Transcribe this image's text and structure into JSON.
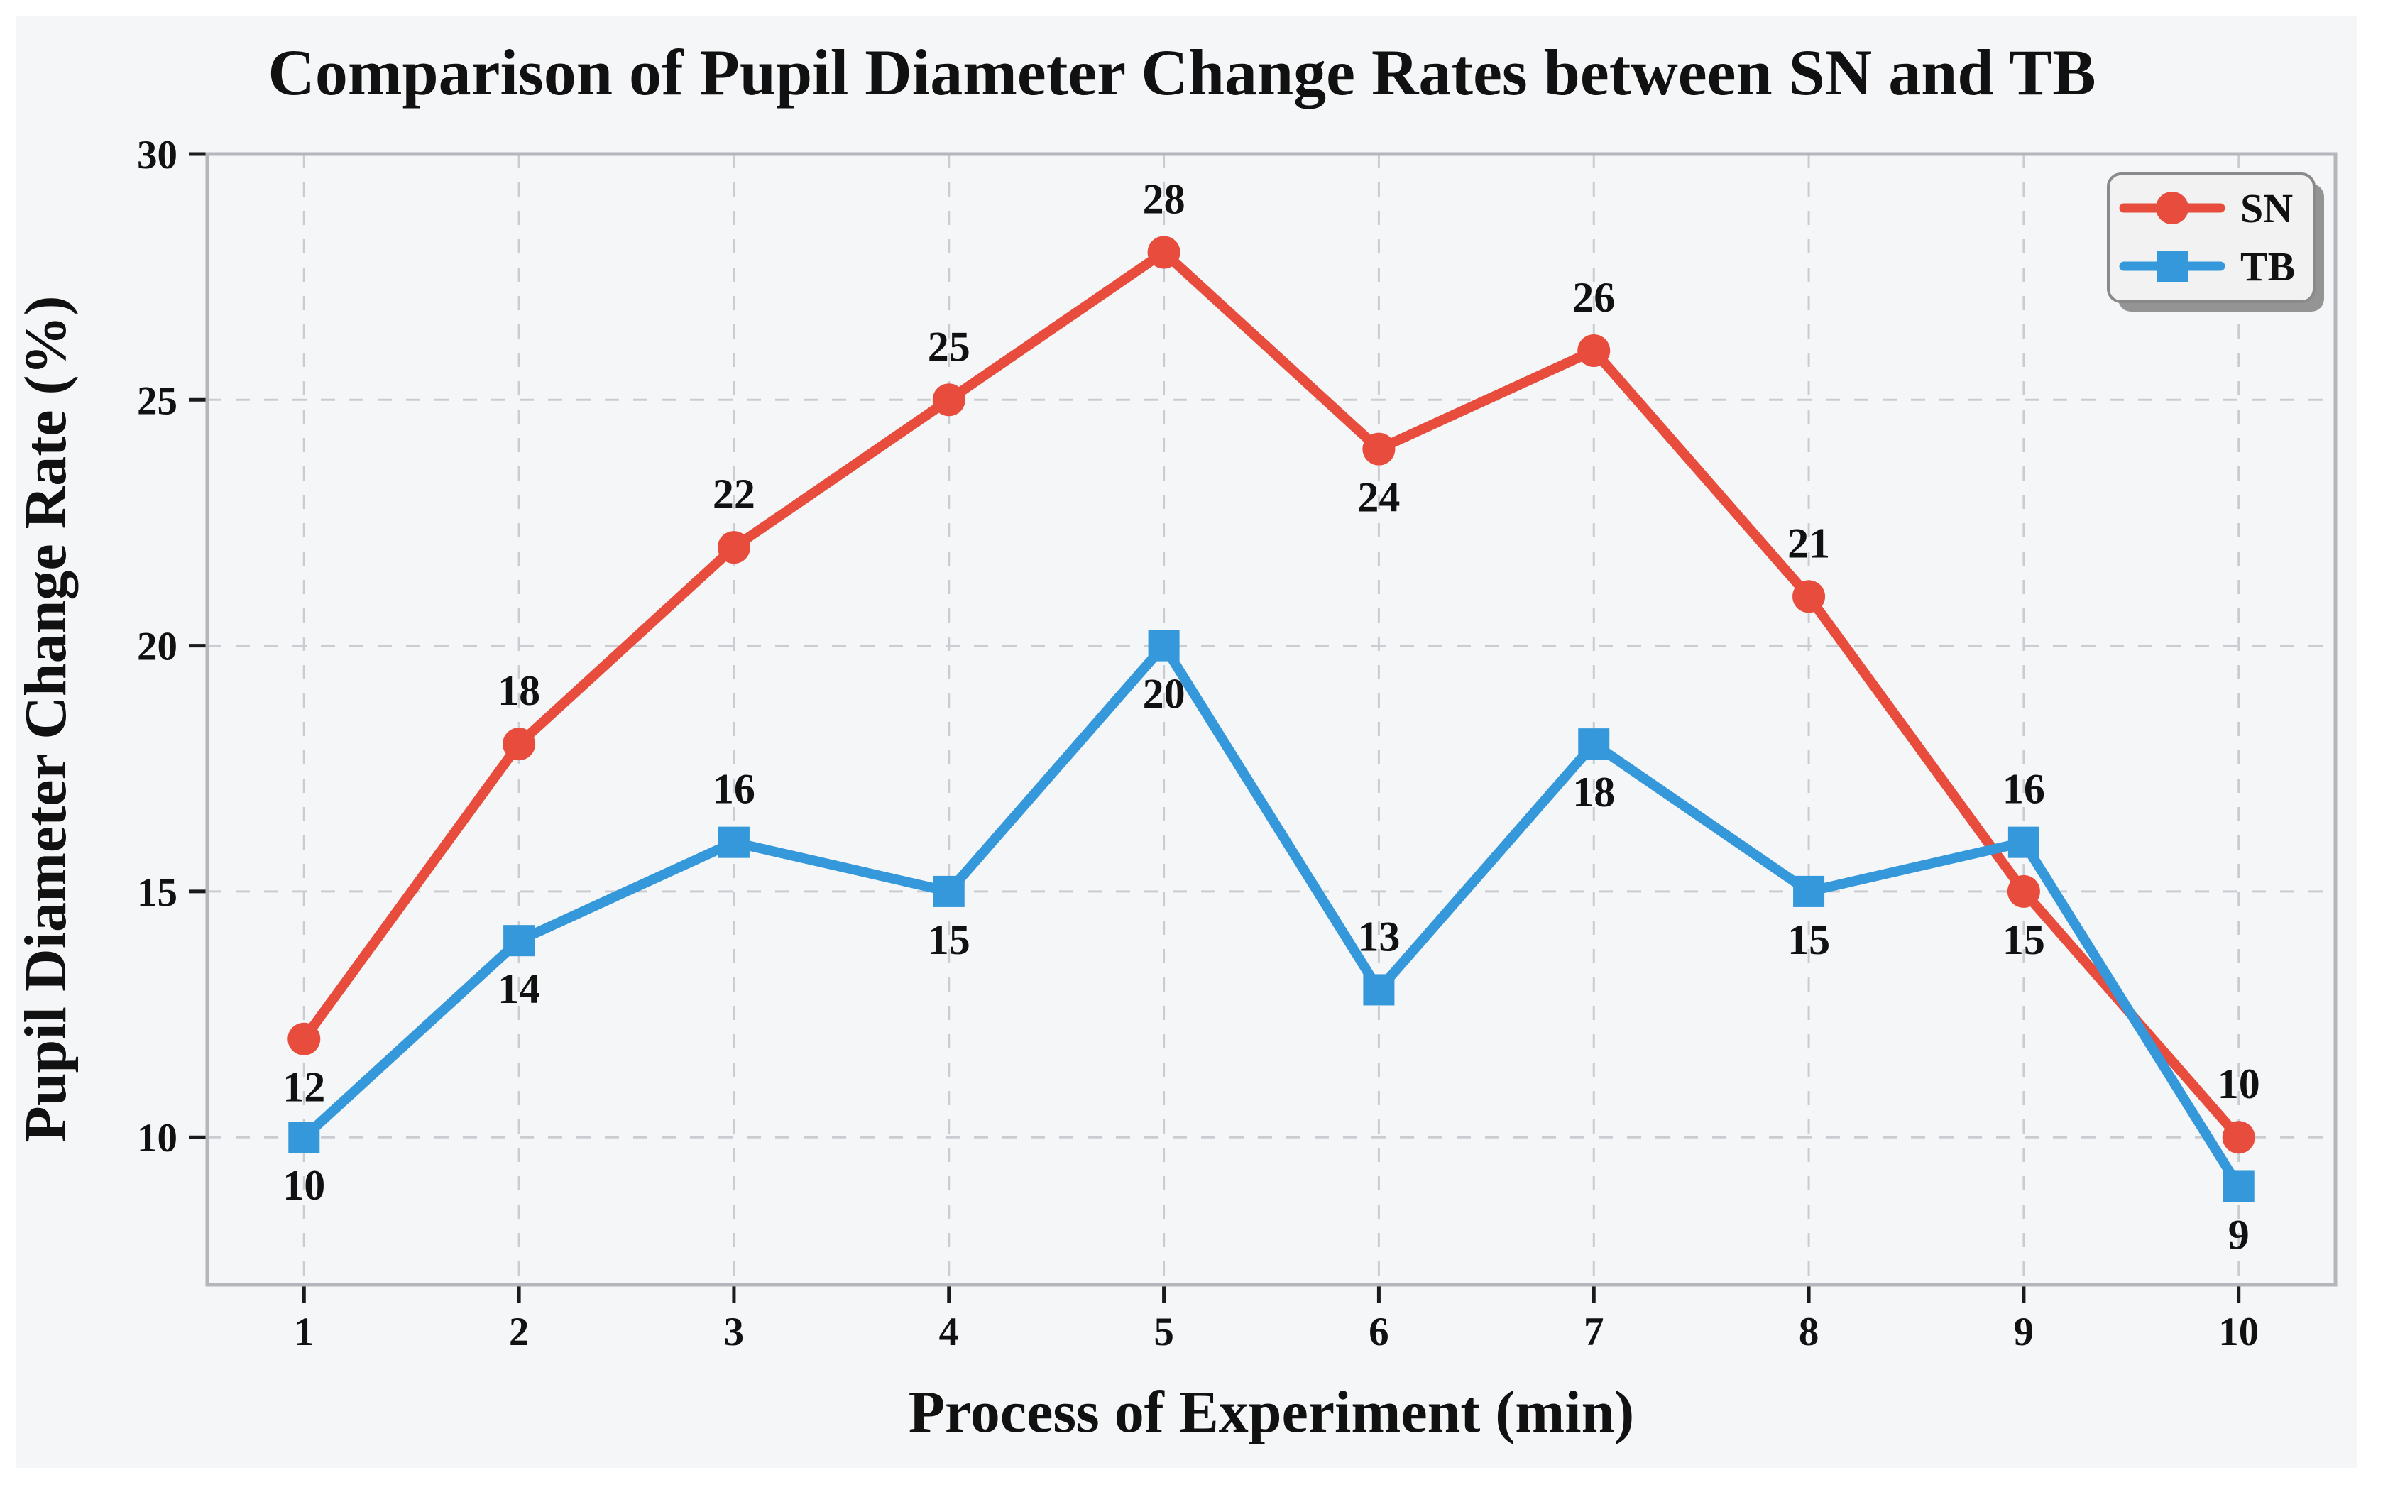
{
  "figure": {
    "background": "#f5f6f8",
    "page_background": "#ffffff"
  },
  "chart_data": {
    "type": "line",
    "title": "Comparison of Pupil Diameter Change Rates between SN and TB",
    "xlabel": "Process of Experiment (min)",
    "ylabel": "Pupil Diameter Change Rate (%)",
    "x": [
      1,
      2,
      3,
      4,
      5,
      6,
      7,
      8,
      9,
      10
    ],
    "xticks": [
      "1",
      "2",
      "3",
      "4",
      "5",
      "6",
      "7",
      "8",
      "9",
      "10"
    ],
    "yticks": [
      "10",
      "15",
      "20",
      "25",
      "30"
    ],
    "ytick_values": [
      10,
      15,
      20,
      25,
      30
    ],
    "xlim": [
      0.55,
      10.45
    ],
    "ylim": [
      7,
      30
    ],
    "grid": {
      "show": true,
      "style": "dashed",
      "axes": "both"
    },
    "legend": {
      "position": "upper-right"
    },
    "series": [
      {
        "name": "SN",
        "color": "#e74c3c",
        "marker": "circle",
        "values": [
          12,
          18,
          22,
          25,
          28,
          24,
          26,
          21,
          15,
          10
        ],
        "labels": [
          "12",
          "18",
          "22",
          "25",
          "28",
          "24",
          "26",
          "21",
          "15",
          "10"
        ],
        "label_placement": [
          "below",
          "above",
          "above",
          "above",
          "above",
          "below",
          "above",
          "above",
          "below",
          "above"
        ]
      },
      {
        "name": "TB",
        "color": "#3498db",
        "marker": "square",
        "values": [
          10,
          14,
          16,
          15,
          20,
          13,
          18,
          15,
          16,
          9
        ],
        "labels": [
          "10",
          "14",
          "16",
          "15",
          "20",
          "13",
          "18",
          "15",
          "16",
          "9"
        ],
        "label_placement": [
          "below",
          "below",
          "above",
          "below",
          "below",
          "above",
          "below",
          "below",
          "above",
          "below"
        ]
      }
    ]
  },
  "colors": {
    "sn": "#e74c3c",
    "tb": "#3498db",
    "text": "#111111",
    "grid": "#c9cdd1",
    "spine": "#b3b7bb",
    "tick_mark": "#1a1a1a",
    "legend_bg": "#f2f2f2",
    "legend_border": "#8a8a8a",
    "legend_shadow": "#949494"
  }
}
